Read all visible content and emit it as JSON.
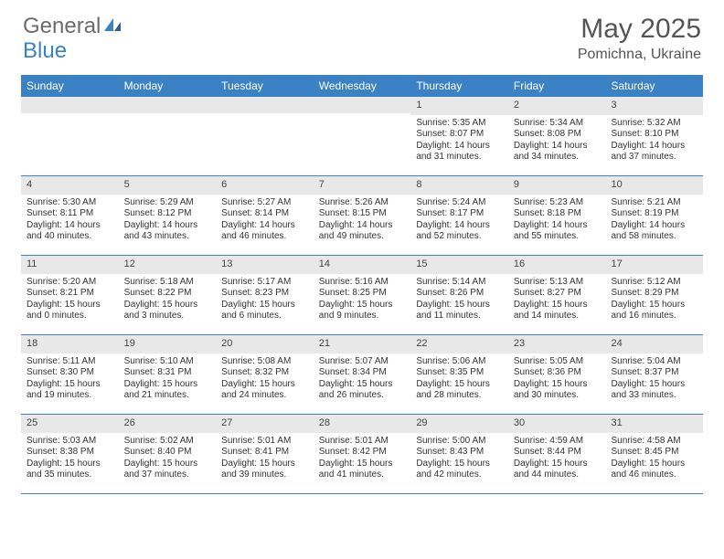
{
  "logo": {
    "text_gray": "General",
    "text_blue": "Blue"
  },
  "header": {
    "month_title": "May 2025",
    "location": "Pomichna, Ukraine"
  },
  "colors": {
    "header_bar": "#3b82c4",
    "daynum_bg": "#e8e8e8",
    "week_border": "#3b82c4",
    "text": "#333333",
    "logo_gray": "#6b6b6b",
    "logo_blue": "#3b82c4"
  },
  "day_headers": [
    "Sunday",
    "Monday",
    "Tuesday",
    "Wednesday",
    "Thursday",
    "Friday",
    "Saturday"
  ],
  "weeks": [
    [
      {
        "day": "",
        "sunrise": "",
        "sunset": "",
        "daylight1": "",
        "daylight2": ""
      },
      {
        "day": "",
        "sunrise": "",
        "sunset": "",
        "daylight1": "",
        "daylight2": ""
      },
      {
        "day": "",
        "sunrise": "",
        "sunset": "",
        "daylight1": "",
        "daylight2": ""
      },
      {
        "day": "",
        "sunrise": "",
        "sunset": "",
        "daylight1": "",
        "daylight2": ""
      },
      {
        "day": "1",
        "sunrise": "Sunrise: 5:35 AM",
        "sunset": "Sunset: 8:07 PM",
        "daylight1": "Daylight: 14 hours",
        "daylight2": "and 31 minutes."
      },
      {
        "day": "2",
        "sunrise": "Sunrise: 5:34 AM",
        "sunset": "Sunset: 8:08 PM",
        "daylight1": "Daylight: 14 hours",
        "daylight2": "and 34 minutes."
      },
      {
        "day": "3",
        "sunrise": "Sunrise: 5:32 AM",
        "sunset": "Sunset: 8:10 PM",
        "daylight1": "Daylight: 14 hours",
        "daylight2": "and 37 minutes."
      }
    ],
    [
      {
        "day": "4",
        "sunrise": "Sunrise: 5:30 AM",
        "sunset": "Sunset: 8:11 PM",
        "daylight1": "Daylight: 14 hours",
        "daylight2": "and 40 minutes."
      },
      {
        "day": "5",
        "sunrise": "Sunrise: 5:29 AM",
        "sunset": "Sunset: 8:12 PM",
        "daylight1": "Daylight: 14 hours",
        "daylight2": "and 43 minutes."
      },
      {
        "day": "6",
        "sunrise": "Sunrise: 5:27 AM",
        "sunset": "Sunset: 8:14 PM",
        "daylight1": "Daylight: 14 hours",
        "daylight2": "and 46 minutes."
      },
      {
        "day": "7",
        "sunrise": "Sunrise: 5:26 AM",
        "sunset": "Sunset: 8:15 PM",
        "daylight1": "Daylight: 14 hours",
        "daylight2": "and 49 minutes."
      },
      {
        "day": "8",
        "sunrise": "Sunrise: 5:24 AM",
        "sunset": "Sunset: 8:17 PM",
        "daylight1": "Daylight: 14 hours",
        "daylight2": "and 52 minutes."
      },
      {
        "day": "9",
        "sunrise": "Sunrise: 5:23 AM",
        "sunset": "Sunset: 8:18 PM",
        "daylight1": "Daylight: 14 hours",
        "daylight2": "and 55 minutes."
      },
      {
        "day": "10",
        "sunrise": "Sunrise: 5:21 AM",
        "sunset": "Sunset: 8:19 PM",
        "daylight1": "Daylight: 14 hours",
        "daylight2": "and 58 minutes."
      }
    ],
    [
      {
        "day": "11",
        "sunrise": "Sunrise: 5:20 AM",
        "sunset": "Sunset: 8:21 PM",
        "daylight1": "Daylight: 15 hours",
        "daylight2": "and 0 minutes."
      },
      {
        "day": "12",
        "sunrise": "Sunrise: 5:18 AM",
        "sunset": "Sunset: 8:22 PM",
        "daylight1": "Daylight: 15 hours",
        "daylight2": "and 3 minutes."
      },
      {
        "day": "13",
        "sunrise": "Sunrise: 5:17 AM",
        "sunset": "Sunset: 8:23 PM",
        "daylight1": "Daylight: 15 hours",
        "daylight2": "and 6 minutes."
      },
      {
        "day": "14",
        "sunrise": "Sunrise: 5:16 AM",
        "sunset": "Sunset: 8:25 PM",
        "daylight1": "Daylight: 15 hours",
        "daylight2": "and 9 minutes."
      },
      {
        "day": "15",
        "sunrise": "Sunrise: 5:14 AM",
        "sunset": "Sunset: 8:26 PM",
        "daylight1": "Daylight: 15 hours",
        "daylight2": "and 11 minutes."
      },
      {
        "day": "16",
        "sunrise": "Sunrise: 5:13 AM",
        "sunset": "Sunset: 8:27 PM",
        "daylight1": "Daylight: 15 hours",
        "daylight2": "and 14 minutes."
      },
      {
        "day": "17",
        "sunrise": "Sunrise: 5:12 AM",
        "sunset": "Sunset: 8:29 PM",
        "daylight1": "Daylight: 15 hours",
        "daylight2": "and 16 minutes."
      }
    ],
    [
      {
        "day": "18",
        "sunrise": "Sunrise: 5:11 AM",
        "sunset": "Sunset: 8:30 PM",
        "daylight1": "Daylight: 15 hours",
        "daylight2": "and 19 minutes."
      },
      {
        "day": "19",
        "sunrise": "Sunrise: 5:10 AM",
        "sunset": "Sunset: 8:31 PM",
        "daylight1": "Daylight: 15 hours",
        "daylight2": "and 21 minutes."
      },
      {
        "day": "20",
        "sunrise": "Sunrise: 5:08 AM",
        "sunset": "Sunset: 8:32 PM",
        "daylight1": "Daylight: 15 hours",
        "daylight2": "and 24 minutes."
      },
      {
        "day": "21",
        "sunrise": "Sunrise: 5:07 AM",
        "sunset": "Sunset: 8:34 PM",
        "daylight1": "Daylight: 15 hours",
        "daylight2": "and 26 minutes."
      },
      {
        "day": "22",
        "sunrise": "Sunrise: 5:06 AM",
        "sunset": "Sunset: 8:35 PM",
        "daylight1": "Daylight: 15 hours",
        "daylight2": "and 28 minutes."
      },
      {
        "day": "23",
        "sunrise": "Sunrise: 5:05 AM",
        "sunset": "Sunset: 8:36 PM",
        "daylight1": "Daylight: 15 hours",
        "daylight2": "and 30 minutes."
      },
      {
        "day": "24",
        "sunrise": "Sunrise: 5:04 AM",
        "sunset": "Sunset: 8:37 PM",
        "daylight1": "Daylight: 15 hours",
        "daylight2": "and 33 minutes."
      }
    ],
    [
      {
        "day": "25",
        "sunrise": "Sunrise: 5:03 AM",
        "sunset": "Sunset: 8:38 PM",
        "daylight1": "Daylight: 15 hours",
        "daylight2": "and 35 minutes."
      },
      {
        "day": "26",
        "sunrise": "Sunrise: 5:02 AM",
        "sunset": "Sunset: 8:40 PM",
        "daylight1": "Daylight: 15 hours",
        "daylight2": "and 37 minutes."
      },
      {
        "day": "27",
        "sunrise": "Sunrise: 5:01 AM",
        "sunset": "Sunset: 8:41 PM",
        "daylight1": "Daylight: 15 hours",
        "daylight2": "and 39 minutes."
      },
      {
        "day": "28",
        "sunrise": "Sunrise: 5:01 AM",
        "sunset": "Sunset: 8:42 PM",
        "daylight1": "Daylight: 15 hours",
        "daylight2": "and 41 minutes."
      },
      {
        "day": "29",
        "sunrise": "Sunrise: 5:00 AM",
        "sunset": "Sunset: 8:43 PM",
        "daylight1": "Daylight: 15 hours",
        "daylight2": "and 42 minutes."
      },
      {
        "day": "30",
        "sunrise": "Sunrise: 4:59 AM",
        "sunset": "Sunset: 8:44 PM",
        "daylight1": "Daylight: 15 hours",
        "daylight2": "and 44 minutes."
      },
      {
        "day": "31",
        "sunrise": "Sunrise: 4:58 AM",
        "sunset": "Sunset: 8:45 PM",
        "daylight1": "Daylight: 15 hours",
        "daylight2": "and 46 minutes."
      }
    ]
  ]
}
